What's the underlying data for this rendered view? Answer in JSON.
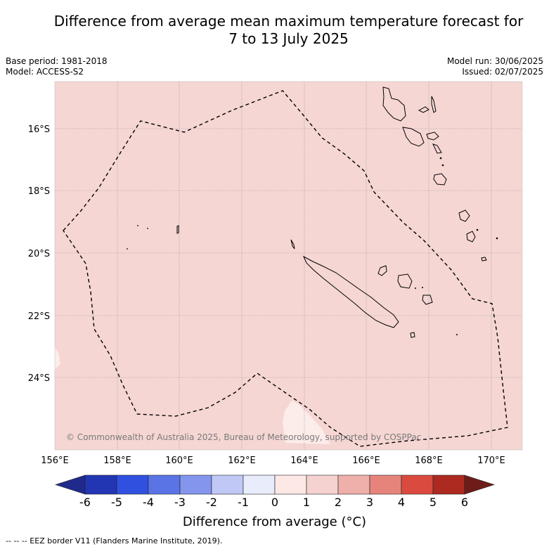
{
  "title_line1": "Difference from average mean maximum temperature forecast for",
  "title_line2": "7 to 13 July 2025",
  "meta_left": {
    "base_period": "Base period: 1981-2018",
    "model": "Model: ACCESS-S2"
  },
  "meta_right": {
    "model_run": "Model run: 30/06/2025",
    "issued": "Issued: 02/07/2025"
  },
  "copyright": "© Commonwealth of Australia 2025, Bureau of Meteorology, supported by COSPPac",
  "lat_labels": [
    "16°S",
    "18°S",
    "20°S",
    "22°S",
    "24°S"
  ],
  "lon_labels": [
    "156°E",
    "158°E",
    "160°E",
    "162°E",
    "164°E",
    "166°E",
    "168°E",
    "170°E"
  ],
  "colorbar": {
    "title": "Difference from average (°C)",
    "ticks": [
      "-6",
      "-5",
      "-4",
      "-3",
      "-2",
      "-1",
      "0",
      "1",
      "2",
      "3",
      "4",
      "5",
      "6"
    ],
    "colors": [
      "#1f2a8c",
      "#2236b4",
      "#3050e0",
      "#5a74e6",
      "#8395ec",
      "#c0c8f5",
      "#e8ecfb",
      "#fde8e6",
      "#f5d2cf",
      "#efafaa",
      "#e6847b",
      "#db4a3e",
      "#ad2a21",
      "#6e1c1a"
    ]
  },
  "map_fill_color": "#f5d6d3",
  "map_light_patch_color": "#fcecea",
  "eez_note": "--  --  -- EEZ border V11 (Flanders Marine Institute, 2019)."
}
